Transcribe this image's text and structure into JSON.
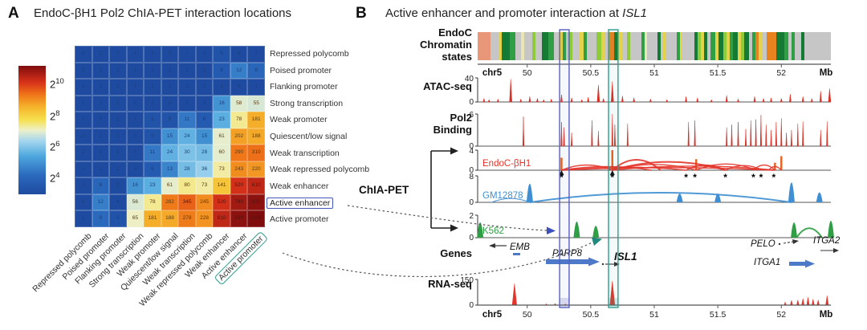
{
  "chart_data": [
    {
      "type": "heatmap",
      "panel": "A",
      "title": "EndoC-βH1 Pol2 ChIA-PET interaction locations",
      "states": [
        "Repressed polycomb",
        "Poised promoter",
        "Flanking promoter",
        "Strong transcription",
        "Weak promoter",
        "Quiescent/low signal",
        "Weak transcription",
        "Weak repressed polycomb",
        "Weak enhancer",
        "Active enhancer",
        "Active promoter"
      ],
      "values": [
        [
          2,
          2,
          1,
          1,
          1,
          2,
          1,
          3,
          5,
          4,
          1
        ],
        [
          2,
          1,
          1,
          1,
          1,
          1,
          1,
          1,
          6,
          12,
          8
        ],
        [
          1,
          1,
          1,
          1,
          1,
          1,
          1,
          2,
          1,
          4,
          1
        ],
        [
          1,
          1,
          1,
          2,
          1,
          2,
          1,
          3,
          16,
          58,
          55
        ],
        [
          1,
          1,
          1,
          1,
          5,
          5,
          11,
          6,
          23,
          78,
          181
        ],
        [
          2,
          1,
          1,
          2,
          5,
          15,
          24,
          15,
          61,
          202,
          188
        ],
        [
          2,
          1,
          1,
          1,
          11,
          24,
          30,
          28,
          60,
          290,
          310
        ],
        [
          1,
          1,
          1,
          3,
          6,
          13,
          28,
          36,
          73,
          243,
          220
        ],
        [
          3,
          8,
          1,
          16,
          23,
          61,
          80,
          73,
          141,
          520,
          610
        ],
        [
          4,
          12,
          4,
          56,
          78,
          282,
          345,
          245,
          520,
          780,
          920
        ],
        [
          1,
          9,
          5,
          65,
          181,
          188,
          278,
          228,
          610,
          920,
          1500
        ]
      ],
      "colorscale": {
        "ticks": [
          {
            "base": "2",
            "exp": "10"
          },
          {
            "base": "2",
            "exp": "8"
          },
          {
            "base": "2",
            "exp": "6"
          },
          {
            "base": "2",
            "exp": "4"
          }
        ],
        "min_exp": 4,
        "max_exp": 10,
        "stops": [
          [
            0,
            "#1e4ba0"
          ],
          [
            0.15,
            "#2b6abe"
          ],
          [
            0.3,
            "#4fa8de"
          ],
          [
            0.42,
            "#a8d8ee"
          ],
          [
            0.5,
            "#eef0c8"
          ],
          [
            0.58,
            "#f7e04e"
          ],
          [
            0.68,
            "#f5b32b"
          ],
          [
            0.78,
            "#ee7218"
          ],
          [
            0.87,
            "#d8321a"
          ],
          [
            1,
            "#7f0d0e"
          ]
        ]
      },
      "highlight_row": "Active enhancer",
      "highlight_col": "Active promoter"
    },
    {
      "type": "genome-tracks",
      "panel": "B",
      "title_prefix": "Active enhancer and promoter interaction at ",
      "title_gene": "ISL1",
      "chiapet_group_label": "ChIA-PET",
      "x_axis": {
        "chrom": "chr5",
        "unit": "Mb",
        "min_mb": 49.61,
        "max_mb": 52.39,
        "ticks_mb": [
          50,
          50.5,
          51,
          51.5,
          52
        ]
      },
      "highlight_regions": [
        {
          "name": "active-enhancer-anchor",
          "start_mb": 50.255,
          "end_mb": 50.33,
          "color": "#5560c0"
        },
        {
          "name": "active-promoter-anchor",
          "start_mb": 50.64,
          "end_mb": 50.715,
          "color": "#2a9d8f"
        }
      ],
      "tracks": [
        {
          "id": "chromatin",
          "label_lines": [
            "EndoC",
            "Chromatin",
            "states"
          ],
          "palette": [
            "#c6c6c6",
            "#e89678",
            "#157a33",
            "#2f9e44",
            "#8fca3a",
            "#e3d24b",
            "#e8821e",
            "#eae6b4",
            "#f4f4f4"
          ],
          "segments": [
            [
              16,
              1
            ],
            [
              10,
              0
            ],
            [
              4,
              5
            ],
            [
              10,
              2
            ],
            [
              7,
              3
            ],
            [
              7,
              0
            ],
            [
              4,
              7
            ],
            [
              10,
              0
            ],
            [
              4,
              4
            ],
            [
              8,
              0
            ],
            [
              8,
              2
            ],
            [
              7,
              3
            ],
            [
              5,
              0
            ],
            [
              6,
              5
            ],
            [
              4,
              3
            ],
            [
              3,
              0
            ],
            [
              5,
              4
            ],
            [
              8,
              0
            ],
            [
              6,
              5
            ],
            [
              4,
              3
            ],
            [
              12,
              0
            ],
            [
              6,
              4
            ],
            [
              4,
              5
            ],
            [
              5,
              0
            ],
            [
              7,
              6
            ],
            [
              5,
              2
            ],
            [
              5,
              5
            ],
            [
              6,
              0
            ],
            [
              4,
              4
            ],
            [
              14,
              0
            ],
            [
              4,
              3
            ],
            [
              3,
              7
            ],
            [
              13,
              0
            ],
            [
              4,
              2
            ],
            [
              3,
              0
            ],
            [
              3,
              5
            ],
            [
              14,
              0
            ],
            [
              4,
              3
            ],
            [
              3,
              5
            ],
            [
              15,
              0
            ],
            [
              4,
              2
            ],
            [
              4,
              4
            ],
            [
              4,
              5
            ],
            [
              4,
              2
            ],
            [
              4,
              0
            ],
            [
              6,
              3
            ],
            [
              4,
              5
            ],
            [
              6,
              2
            ],
            [
              4,
              4
            ],
            [
              4,
              5
            ],
            [
              4,
              3
            ],
            [
              6,
              2
            ],
            [
              4,
              5
            ],
            [
              4,
              4
            ],
            [
              6,
              2
            ],
            [
              4,
              0
            ],
            [
              4,
              3
            ],
            [
              4,
              6
            ],
            [
              4,
              5
            ],
            [
              6,
              0
            ],
            [
              12,
              6
            ],
            [
              10,
              2
            ],
            [
              5,
              3
            ],
            [
              4,
              0
            ],
            [
              4,
              3
            ],
            [
              8,
              0
            ],
            [
              4,
              2
            ],
            [
              33,
              0
            ]
          ]
        },
        {
          "id": "atac",
          "label": "ATAC-seq",
          "ymax": 40,
          "ymin": 0,
          "color": "#d93025",
          "peaks": [
            [
              49.66,
              6
            ],
            [
              49.7,
              4
            ],
            [
              49.77,
              5
            ],
            [
              49.87,
              38
            ],
            [
              49.95,
              5
            ],
            [
              50.02,
              9
            ],
            [
              50.08,
              6
            ],
            [
              50.13,
              4
            ],
            [
              50.19,
              5
            ],
            [
              50.27,
              12
            ],
            [
              50.35,
              7
            ],
            [
              50.43,
              4
            ],
            [
              50.48,
              8
            ],
            [
              50.56,
              28
            ],
            [
              50.6,
              6
            ],
            [
              50.67,
              34
            ],
            [
              50.75,
              10
            ],
            [
              50.84,
              7
            ],
            [
              50.97,
              5
            ],
            [
              51.1,
              4
            ],
            [
              51.25,
              9
            ],
            [
              51.34,
              7
            ],
            [
              51.45,
              4
            ],
            [
              51.57,
              11
            ],
            [
              51.66,
              5
            ],
            [
              51.79,
              9
            ],
            [
              51.86,
              6
            ],
            [
              51.92,
              7
            ],
            [
              52.0,
              6
            ],
            [
              52.07,
              13
            ],
            [
              52.17,
              9
            ],
            [
              52.24,
              6
            ],
            [
              52.31,
              18
            ],
            [
              52.38,
              22
            ]
          ]
        },
        {
          "id": "pol2",
          "label_lines": [
            "Pol2",
            "Binding"
          ],
          "ymax": 6,
          "ymin": 0,
          "color": "#d93025",
          "peaks": [
            [
              49.97,
              5.5
            ],
            [
              50.27,
              4.5
            ],
            [
              50.29,
              3.5
            ],
            [
              50.35,
              2.5
            ],
            [
              50.51,
              4.8
            ],
            [
              50.56,
              2.8
            ],
            [
              50.67,
              6
            ],
            [
              50.69,
              4
            ],
            [
              50.79,
              4.2
            ],
            [
              51.27,
              4.5
            ],
            [
              51.32,
              4.8
            ],
            [
              51.57,
              3.5
            ],
            [
              51.61,
              4
            ],
            [
              51.66,
              4.5
            ],
            [
              51.72,
              3.2
            ],
            [
              51.76,
              4.8
            ],
            [
              51.8,
              5
            ],
            [
              51.84,
              5.8
            ],
            [
              51.88,
              4
            ],
            [
              51.92,
              3
            ],
            [
              51.96,
              4.5
            ],
            [
              52.0,
              5.2
            ],
            [
              52.04,
              2.5
            ],
            [
              52.08,
              3
            ],
            [
              52.13,
              4.2
            ],
            [
              52.17,
              4.6
            ],
            [
              52.31,
              3
            ],
            [
              52.36,
              4.6
            ]
          ]
        },
        {
          "id": "endoc",
          "group": "ChIA-PET",
          "label": "EndoC-βH1",
          "ymax": 4,
          "ymin": 0,
          "color": "#e3352b",
          "spikes": [
            [
              50.27,
              2.5
            ],
            [
              50.67,
              4
            ],
            [
              51.33,
              2.2
            ],
            [
              51.95,
              1.5
            ],
            [
              52.0,
              2.8
            ]
          ],
          "arcs": [
            [
              50.27,
              50.67,
              0.5
            ],
            [
              50.27,
              50.98,
              0.35
            ],
            [
              50.27,
              51.25,
              0.3
            ],
            [
              50.67,
              51.05,
              1.0
            ],
            [
              50.67,
              51.33,
              0.55
            ],
            [
              50.67,
              51.56,
              0.8
            ],
            [
              50.67,
              51.95,
              0.4
            ],
            [
              50.27,
              51.94,
              0.25
            ],
            [
              51.25,
              51.56,
              0.5
            ],
            [
              51.33,
              51.8,
              0.6
            ],
            [
              51.56,
              51.85,
              0.45
            ],
            [
              51.78,
              51.95,
              0.5
            ],
            [
              51.9,
              52.0,
              0.35
            ]
          ],
          "asterisks_mb": [
            50.27,
            50.67,
            51.25,
            51.32,
            51.56,
            51.78,
            51.84,
            51.94
          ]
        },
        {
          "id": "gm12878",
          "group": "ChIA-PET",
          "label": "GM12878",
          "ymax": 8,
          "ymin": 0,
          "color": "#3f8fd2",
          "peaks": [
            [
              50.02,
              7.5
            ],
            [
              51.2,
              3.5
            ],
            [
              51.5,
              3.5
            ],
            [
              52.08,
              8
            ],
            [
              52.3,
              4
            ]
          ],
          "arcs": [
            [
              49.72,
              50.02,
              0.3
            ],
            [
              50.02,
              52.08,
              0.75
            ]
          ]
        },
        {
          "id": "k562",
          "group": "ChIA-PET",
          "label": "K562",
          "ymax": 2,
          "ymin": 0,
          "color": "#2f9e44",
          "peaks": [
            [
              49.63,
              1.8
            ],
            [
              50.39,
              1.9
            ],
            [
              50.54,
              1.4
            ],
            [
              52.1,
              1.8
            ],
            [
              52.39,
              2.0
            ]
          ],
          "arcs": [
            [
              52.12,
              52.32,
              0.9
            ]
          ]
        },
        {
          "id": "genes",
          "label": "Genes",
          "genes": [
            "EMB",
            "PARP8",
            "ISL1",
            "PELO",
            "ITGA2",
            "ITGA1"
          ]
        },
        {
          "id": "rna",
          "label": "RNA-seq",
          "ymax": 150,
          "ymin": 0,
          "color": "#e3352b",
          "peaks": [
            [
              49.9,
              125
            ],
            [
              50.15,
              8
            ],
            [
              50.22,
              10
            ],
            [
              50.3,
              8
            ],
            [
              50.67,
              140
            ],
            [
              52.03,
              18
            ],
            [
              52.08,
              28
            ],
            [
              52.13,
              30
            ],
            [
              52.17,
              38
            ],
            [
              52.21,
              45
            ],
            [
              52.25,
              35
            ],
            [
              52.29,
              30
            ],
            [
              52.36,
              55
            ]
          ]
        }
      ],
      "connectors": [
        {
          "from_label": "Active enhancer",
          "to": "active-enhancer-anchor",
          "color": "#3b4fc1"
        },
        {
          "from_label": "Active promoter",
          "to": "active-promoter-anchor",
          "color": "#1f8a7d"
        }
      ]
    }
  ]
}
